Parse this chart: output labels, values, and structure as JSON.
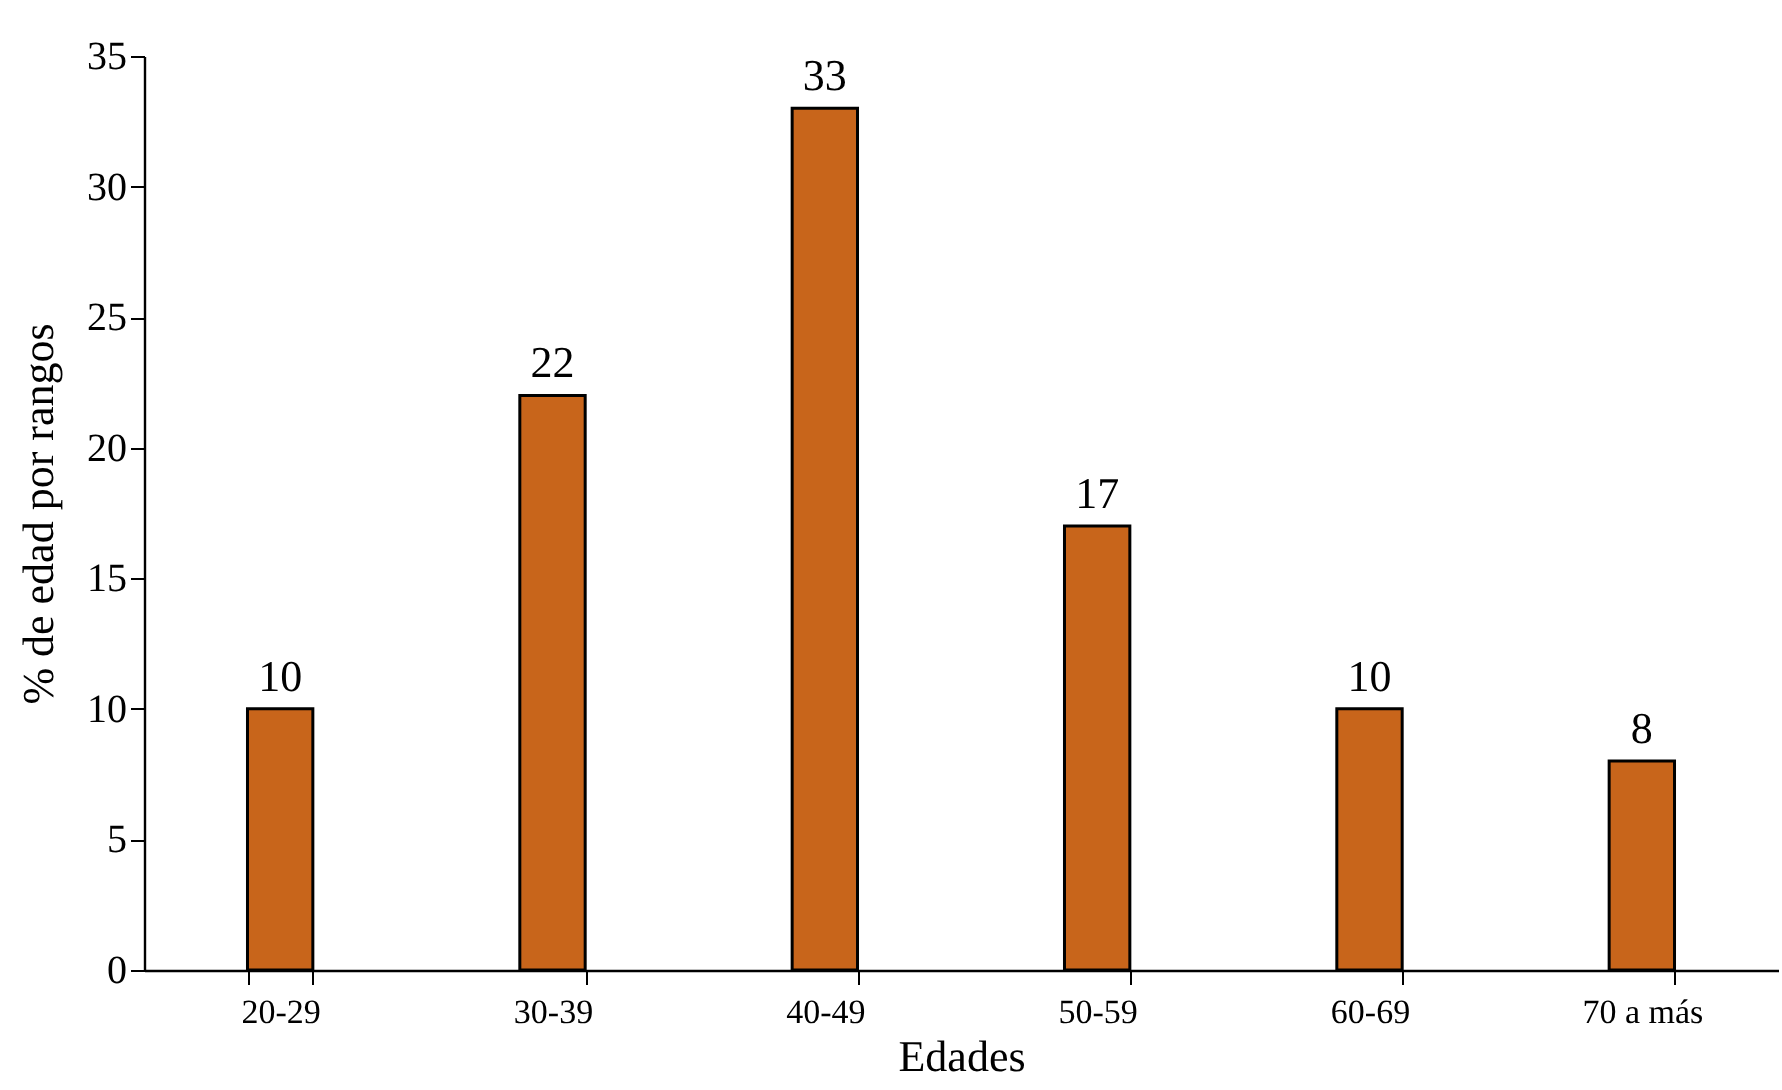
{
  "chart_data": {
    "type": "bar",
    "xlabel": "Edades",
    "ylabel": "% de edad por rangos",
    "categories": [
      "20-29",
      "30-39",
      "40-49",
      "50-59",
      "60-69",
      "70 a más"
    ],
    "values": [
      10,
      22,
      33,
      17,
      10,
      8
    ],
    "color": "#c8651b",
    "ylim": [
      0,
      35
    ],
    "yticks": [
      0,
      5,
      10,
      15,
      20,
      25,
      30,
      35
    ],
    "grid": false,
    "data_labels": true
  }
}
